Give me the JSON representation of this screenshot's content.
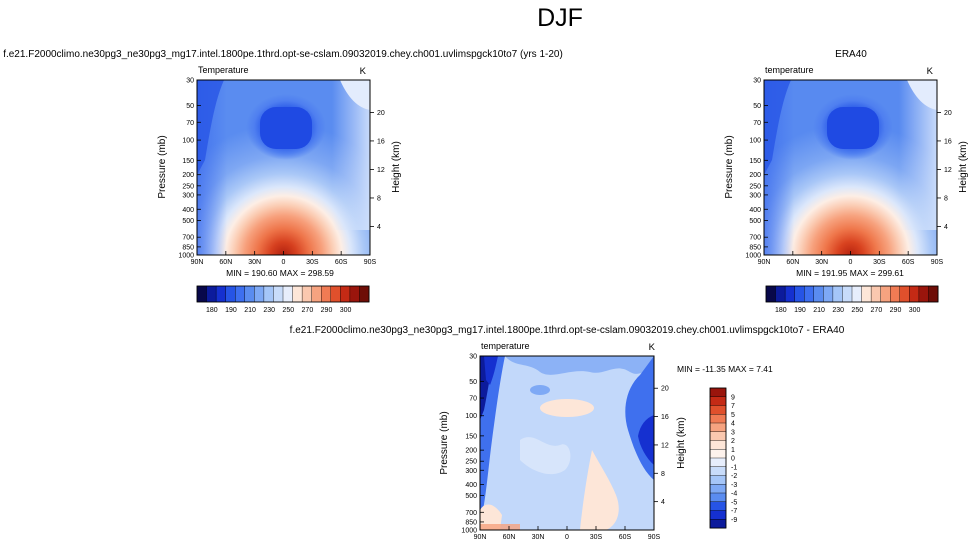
{
  "figure": {
    "title": "DJF",
    "colors": {
      "axis": "#000000",
      "text": "#000000",
      "background": "#ffffff"
    }
  },
  "chart_data": [
    {
      "type": "heatmap",
      "id": "model",
      "title": "f.e21.F2000climo.ne30pg3_ne30pg3_mg17.intel.1800pe.1thrd.opt-se-cslam.09032019.chey.ch001.uvlimspgck10to7 (yrs 1-20)",
      "panel_label": "Temperature",
      "units": "K",
      "xlabel": "",
      "ylabel": "Pressure (mb)",
      "y2label": "Height (km)",
      "x_ticks": [
        "90N",
        "60N",
        "30N",
        "0",
        "30S",
        "60S",
        "90S"
      ],
      "x_values": [
        90,
        60,
        30,
        0,
        -30,
        -60,
        -90
      ],
      "y_ticks": [
        "30",
        "50",
        "70",
        "100",
        "150",
        "200",
        "250",
        "300",
        "400",
        "500",
        "700",
        "850",
        "1000"
      ],
      "y_values": [
        30,
        50,
        70,
        100,
        150,
        200,
        250,
        300,
        400,
        500,
        700,
        850,
        1000
      ],
      "ylim": [
        1000,
        30
      ],
      "y2_ticks": [
        "4",
        "8",
        "12",
        "16",
        "20"
      ],
      "y2_values": [
        4,
        8,
        12,
        16,
        20
      ],
      "min_label": "MIN = 190.60   MAX = 298.59",
      "min": 190.6,
      "max": 298.59,
      "colorbar": {
        "levels": [
          "180",
          "190",
          "210",
          "230",
          "250",
          "270",
          "290",
          "300"
        ],
        "colors": [
          "#08084a",
          "#0c1b9c",
          "#1530d0",
          "#2654e6",
          "#3d6ff0",
          "#5a8cf0",
          "#7ea9f5",
          "#a5c6f8",
          "#c8dcfa",
          "#e7eefc",
          "#fde6d8",
          "#fac8af",
          "#f6a380",
          "#f07b54",
          "#e0502c",
          "#c42a15",
          "#9a150c",
          "#6e0d07"
        ]
      }
    },
    {
      "type": "heatmap",
      "id": "obs",
      "title": "ERA40",
      "panel_label": "temperature",
      "units": "K",
      "xlabel": "",
      "ylabel": "Pressure (mb)",
      "y2label": "Height (km)",
      "x_ticks": [
        "90N",
        "60N",
        "30N",
        "0",
        "30S",
        "60S",
        "90S"
      ],
      "x_values": [
        90,
        60,
        30,
        0,
        -30,
        -60,
        -90
      ],
      "y_ticks": [
        "30",
        "50",
        "70",
        "100",
        "150",
        "200",
        "250",
        "300",
        "400",
        "500",
        "700",
        "850",
        "1000"
      ],
      "y_values": [
        30,
        50,
        70,
        100,
        150,
        200,
        250,
        300,
        400,
        500,
        700,
        850,
        1000
      ],
      "ylim": [
        1000,
        30
      ],
      "y2_ticks": [
        "4",
        "8",
        "12",
        "16",
        "20"
      ],
      "y2_values": [
        4,
        8,
        12,
        16,
        20
      ],
      "min_label": "MIN = 191.95   MAX = 299.61",
      "min": 191.95,
      "max": 299.61,
      "colorbar": {
        "levels": [
          "180",
          "190",
          "210",
          "230",
          "250",
          "270",
          "290",
          "300"
        ],
        "colors": [
          "#08084a",
          "#0c1b9c",
          "#1530d0",
          "#2654e6",
          "#3d6ff0",
          "#5a8cf0",
          "#7ea9f5",
          "#a5c6f8",
          "#c8dcfa",
          "#e7eefc",
          "#fde6d8",
          "#fac8af",
          "#f6a380",
          "#f07b54",
          "#e0502c",
          "#c42a15",
          "#9a150c",
          "#6e0d07"
        ]
      }
    },
    {
      "type": "heatmap",
      "id": "diff",
      "title": "f.e21.F2000climo.ne30pg3_ne30pg3_mg17.intel.1800pe.1thrd.opt-se-cslam.09032019.chey.ch001.uvlimspgck10to7 - ERA40",
      "panel_label": "temperature",
      "units": "K",
      "xlabel": "",
      "ylabel": "Pressure (mb)",
      "y2label": "Height (km)",
      "x_ticks": [
        "90N",
        "60N",
        "30N",
        "0",
        "30S",
        "60S",
        "90S"
      ],
      "x_values": [
        90,
        60,
        30,
        0,
        -30,
        -60,
        -90
      ],
      "y_ticks": [
        "30",
        "50",
        "70",
        "100",
        "150",
        "200",
        "250",
        "300",
        "400",
        "500",
        "700",
        "850",
        "1000"
      ],
      "y_values": [
        30,
        50,
        70,
        100,
        150,
        200,
        250,
        300,
        400,
        500,
        700,
        850,
        1000
      ],
      "ylim": [
        1000,
        30
      ],
      "y2_ticks": [
        "4",
        "8",
        "12",
        "16",
        "20"
      ],
      "y2_values": [
        4,
        8,
        12,
        16,
        20
      ],
      "min_label": "MIN = -11.35   MAX =   7.41",
      "min": -11.35,
      "max": 7.41,
      "colorbar": {
        "levels": [
          "9",
          "7",
          "5",
          "4",
          "3",
          "2",
          "1",
          "0",
          "-1",
          "-2",
          "-3",
          "-4",
          "-5",
          "-7",
          "-9"
        ],
        "colors": [
          "#9a150c",
          "#c42a15",
          "#e0502c",
          "#f07b54",
          "#f6a380",
          "#fac8af",
          "#fde6d8",
          "#fdf2ec",
          "#e7eefc",
          "#c8dcfa",
          "#a5c6f8",
          "#7ea9f5",
          "#5a8cf0",
          "#2654e6",
          "#1530d0",
          "#0c1b9c"
        ]
      }
    }
  ]
}
